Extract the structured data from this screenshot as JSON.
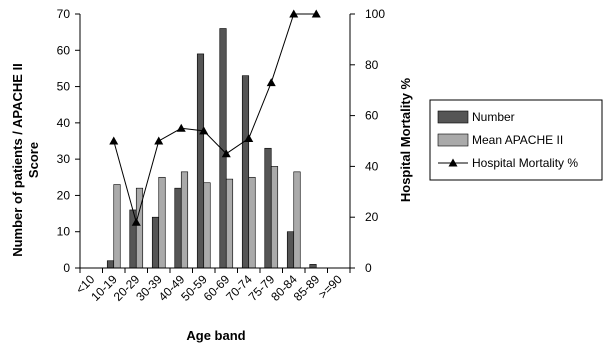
{
  "chart_data": {
    "type": "bar",
    "categories": [
      "<10",
      "10-19",
      "20-29",
      "30-39",
      "40-49",
      "50-59",
      "60-69",
      "70-74",
      "75-79",
      "80-84",
      "85-89",
      ">=90"
    ],
    "series": [
      {
        "name": "Number",
        "type": "bar",
        "axis": "left",
        "color": "#555555",
        "values": [
          0,
          2,
          16,
          14,
          22,
          59,
          66,
          53,
          33,
          10,
          1,
          0
        ]
      },
      {
        "name": "Mean APACHE II",
        "type": "bar",
        "axis": "left",
        "color": "#aaaaaa",
        "values": [
          null,
          23,
          22,
          25,
          26.5,
          23.5,
          24.5,
          25,
          28,
          26.5,
          null,
          null
        ]
      },
      {
        "name": "Hospital Mortality %",
        "type": "line",
        "axis": "right",
        "color": "#000000",
        "marker": "triangle",
        "values": [
          null,
          50,
          18,
          50,
          55,
          54,
          45,
          51,
          73,
          100,
          100,
          null
        ]
      }
    ],
    "xlabel": "Age band",
    "ylabel": "Number of patients / APACHE II Score",
    "ylabel2": "Hospital Mortality %",
    "ylim": [
      0,
      70
    ],
    "ylim2": [
      0,
      100
    ],
    "yticks": [
      "0",
      "10",
      "20",
      "30",
      "40",
      "50",
      "60",
      "70"
    ],
    "yticks2": [
      "0",
      "20",
      "40",
      "60",
      "80",
      "100"
    ],
    "grid": false,
    "legend": "right"
  }
}
